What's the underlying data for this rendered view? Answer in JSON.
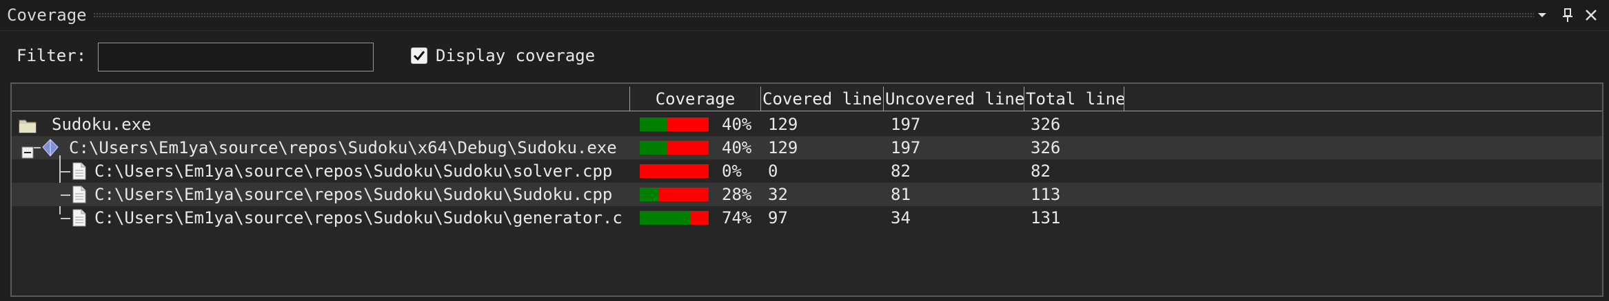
{
  "window": {
    "title": "Coverage",
    "buttons": [
      "▾",
      "📌",
      "✕"
    ]
  },
  "filter": {
    "label": "Filter:",
    "value": "",
    "placeholder": ""
  },
  "display_coverage": {
    "label": "Display coverage",
    "checked": true
  },
  "table": {
    "columns": [
      "",
      "Coverage",
      "Covered line",
      "Uncovered line",
      "Total line"
    ],
    "rows": [
      {
        "name": "Sudoku.exe",
        "icon": "folder-icon",
        "coverage": 40,
        "coverage_label": "40%",
        "covered": "129",
        "uncovered": "197",
        "total": "326"
      },
      {
        "name": "C:\\Users\\Em1ya\\source\\repos\\Sudoku\\x64\\Debug\\Sudoku.exe",
        "icon": "module-icon",
        "coverage": 40,
        "coverage_label": "40%",
        "covered": "129",
        "uncovered": "197",
        "total": "326"
      },
      {
        "name": "C:\\Users\\Em1ya\\source\\repos\\Sudoku\\Sudoku\\solver.cpp",
        "icon": "file-icon",
        "coverage": 0,
        "coverage_label": "0%",
        "covered": "0",
        "uncovered": "82",
        "total": "82"
      },
      {
        "name": "C:\\Users\\Em1ya\\source\\repos\\Sudoku\\Sudoku\\Sudoku.cpp",
        "icon": "file-icon",
        "coverage": 28,
        "coverage_label": "28%",
        "covered": "32",
        "uncovered": "81",
        "total": "113"
      },
      {
        "name": "C:\\Users\\Em1ya\\source\\repos\\Sudoku\\Sudoku\\generator.c",
        "icon": "file-icon",
        "coverage": 74,
        "coverage_label": "74%",
        "covered": "97",
        "uncovered": "34",
        "total": "131"
      }
    ]
  },
  "colors": {
    "covered": "#008000",
    "uncovered": "#ff0000",
    "alt_row": "#363636"
  }
}
